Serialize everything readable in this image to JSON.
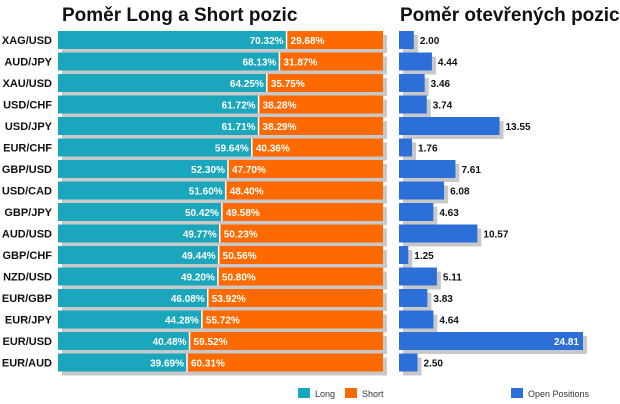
{
  "chart_data": [
    {
      "type": "bar",
      "orientation": "horizontal",
      "stacked": true,
      "title": "Poměr Long a Short pozic",
      "categories": [
        "XAG/USD",
        "AUD/JPY",
        "XAU/USD",
        "USD/CHF",
        "USD/JPY",
        "EUR/CHF",
        "GBP/USD",
        "USD/CAD",
        "GBP/JPY",
        "AUD/USD",
        "GBP/CHF",
        "NZD/USD",
        "EUR/GBP",
        "EUR/JPY",
        "EUR/USD",
        "EUR/AUD"
      ],
      "series": [
        {
          "name": "Long",
          "color": "#1aa7bd",
          "values": [
            70.32,
            68.13,
            64.25,
            61.72,
            61.71,
            59.64,
            52.3,
            51.6,
            50.42,
            49.77,
            49.44,
            49.2,
            46.08,
            44.28,
            40.48,
            39.69
          ]
        },
        {
          "name": "Short",
          "color": "#ff6a00",
          "values": [
            29.68,
            31.87,
            35.75,
            38.28,
            38.29,
            40.36,
            47.7,
            48.4,
            49.58,
            50.23,
            50.56,
            50.8,
            53.92,
            55.72,
            59.52,
            60.31
          ]
        }
      ],
      "xlim": [
        0,
        100
      ],
      "value_suffix": "%",
      "legend": "bottom-right"
    },
    {
      "type": "bar",
      "orientation": "horizontal",
      "title": "Poměr otevřených pozic",
      "categories": [
        "XAG/USD",
        "AUD/JPY",
        "XAU/USD",
        "USD/CHF",
        "USD/JPY",
        "EUR/CHF",
        "GBP/USD",
        "USD/CAD",
        "GBP/JPY",
        "AUD/USD",
        "GBP/CHF",
        "NZD/USD",
        "EUR/GBP",
        "EUR/JPY",
        "EUR/USD",
        "EUR/AUD"
      ],
      "series": [
        {
          "name": "Open Positions",
          "color": "#2d6fd8",
          "values": [
            2.0,
            4.44,
            3.46,
            3.74,
            13.55,
            1.76,
            7.61,
            6.08,
            4.63,
            10.57,
            1.25,
            5.11,
            3.83,
            4.64,
            24.81,
            2.5
          ]
        }
      ],
      "xlim": [
        0,
        24.81
      ],
      "legend": "bottom-right"
    }
  ]
}
